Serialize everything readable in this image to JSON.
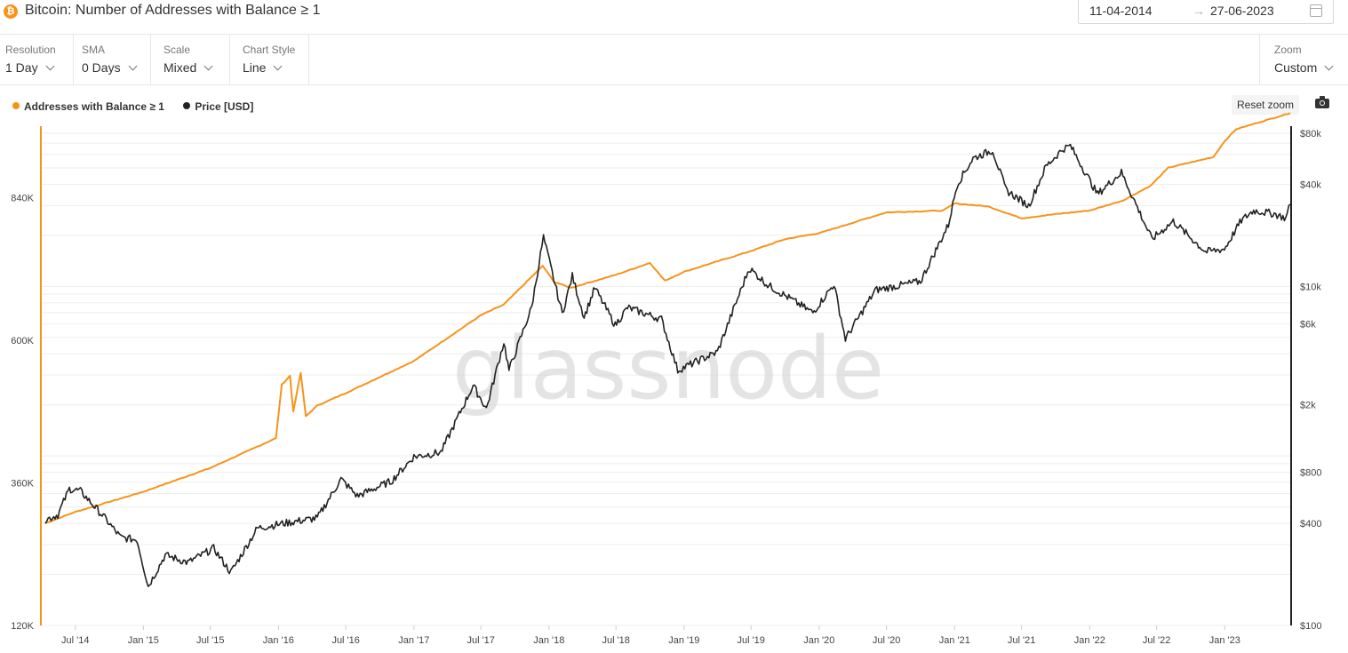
{
  "header": {
    "asset_icon": "bitcoin-icon",
    "title": "Bitcoin: Number of Addresses with Balance ≥ 1",
    "date_from": "11-04-2014",
    "date_arrow": "→",
    "date_to": "27-06-2023"
  },
  "controls": [
    {
      "label": "Resolution",
      "value": "1 Day"
    },
    {
      "label": "SMA",
      "value": "0 Days"
    },
    {
      "label": "Scale",
      "value": "Mixed"
    },
    {
      "label": "Chart Style",
      "value": "Line"
    }
  ],
  "zoom": {
    "label": "Zoom",
    "value": "Custom"
  },
  "reset_zoom_label": "Reset zoom",
  "watermark": "glassnode",
  "colors": {
    "addresses": "#f7931a",
    "price": "#222222",
    "axis_left": "#f7931a",
    "axis_right": "#222222"
  },
  "chart_data": {
    "type": "line",
    "title": "Bitcoin: Number of Addresses with Balance ≥ 1",
    "legend_position": "top-left",
    "grid": true,
    "x_ticks": [
      "Jul '14",
      "Jan '15",
      "Jul '15",
      "Jan '16",
      "Jul '16",
      "Jan '17",
      "Jul '17",
      "Jan '18",
      "Jul '18",
      "Jan '19",
      "Jul '19",
      "Jan '20",
      "Jul '20",
      "Jan '21",
      "Jul '21",
      "Jan '22",
      "Jul '22",
      "Jan '23"
    ],
    "x_range": [
      "2014-04-11",
      "2023-06-27"
    ],
    "y_left": {
      "scale": "linear",
      "range": [
        120000,
        960000
      ],
      "ticks": [
        120000,
        360000,
        600000,
        840000
      ],
      "tick_labels": [
        "120K",
        "360K",
        "600K",
        "840K"
      ]
    },
    "y_right": {
      "scale": "log",
      "range": [
        100,
        80000
      ],
      "ticks": [
        100,
        400,
        800,
        2000,
        6000,
        10000,
        40000,
        80000
      ],
      "tick_labels": [
        "$100",
        "$400",
        "$800",
        "$2k",
        "$6k",
        "$10k",
        "$40k",
        "$80k"
      ]
    },
    "series": [
      {
        "name": "Addresses with Balance ≥ 1",
        "axis": "left",
        "points": [
          [
            "2014-04-11",
            292000
          ],
          [
            "2014-07-01",
            311000
          ],
          [
            "2015-01-01",
            345000
          ],
          [
            "2015-07-01",
            385000
          ],
          [
            "2015-12-25",
            435000
          ],
          [
            "2016-01-10",
            525000
          ],
          [
            "2016-02-01",
            540000
          ],
          [
            "2016-02-10",
            480000
          ],
          [
            "2016-03-01",
            545000
          ],
          [
            "2016-03-15",
            472000
          ],
          [
            "2016-04-15",
            490000
          ],
          [
            "2016-07-01",
            511000
          ],
          [
            "2017-01-01",
            565000
          ],
          [
            "2017-07-01",
            642000
          ],
          [
            "2017-09-01",
            660000
          ],
          [
            "2017-12-15",
            725000
          ],
          [
            "2018-01-15",
            698000
          ],
          [
            "2018-03-01",
            688000
          ],
          [
            "2018-07-01",
            710000
          ],
          [
            "2018-10-01",
            730000
          ],
          [
            "2018-11-10",
            700000
          ],
          [
            "2019-01-01",
            715000
          ],
          [
            "2019-07-01",
            750000
          ],
          [
            "2019-10-01",
            770000
          ],
          [
            "2020-01-01",
            780000
          ],
          [
            "2020-07-01",
            815000
          ],
          [
            "2020-12-01",
            818000
          ],
          [
            "2021-01-01",
            830000
          ],
          [
            "2021-04-01",
            825000
          ],
          [
            "2021-07-01",
            805000
          ],
          [
            "2021-10-01",
            812000
          ],
          [
            "2022-01-01",
            818000
          ],
          [
            "2022-04-01",
            835000
          ],
          [
            "2022-06-15",
            860000
          ],
          [
            "2022-08-01",
            890000
          ],
          [
            "2022-12-01",
            908000
          ],
          [
            "2023-01-01",
            935000
          ],
          [
            "2023-02-01",
            955000
          ],
          [
            "2023-06-27",
            982000
          ]
        ]
      },
      {
        "name": "Price [USD]",
        "axis": "right",
        "points": [
          [
            "2014-04-11",
            420
          ],
          [
            "2014-05-15",
            450
          ],
          [
            "2014-06-15",
            640
          ],
          [
            "2014-07-15",
            620
          ],
          [
            "2014-09-15",
            440
          ],
          [
            "2014-11-01",
            330
          ],
          [
            "2014-12-15",
            320
          ],
          [
            "2015-01-14",
            170
          ],
          [
            "2015-03-01",
            260
          ],
          [
            "2015-05-01",
            235
          ],
          [
            "2015-07-10",
            285
          ],
          [
            "2015-08-25",
            205
          ],
          [
            "2015-11-05",
            375
          ],
          [
            "2016-01-15",
            400
          ],
          [
            "2016-04-15",
            430
          ],
          [
            "2016-06-18",
            730
          ],
          [
            "2016-08-01",
            580
          ],
          [
            "2016-11-01",
            710
          ],
          [
            "2017-01-01",
            990
          ],
          [
            "2017-03-15",
            1050
          ],
          [
            "2017-06-10",
            2600
          ],
          [
            "2017-07-16",
            1900
          ],
          [
            "2017-09-01",
            4700
          ],
          [
            "2017-09-15",
            3200
          ],
          [
            "2017-11-15",
            7500
          ],
          [
            "2017-12-17",
            19500
          ],
          [
            "2018-02-06",
            6900
          ],
          [
            "2018-03-05",
            11500
          ],
          [
            "2018-04-06",
            6600
          ],
          [
            "2018-05-05",
            9800
          ],
          [
            "2018-06-29",
            5900
          ],
          [
            "2018-08-01",
            7500
          ],
          [
            "2018-11-01",
            6400
          ],
          [
            "2018-12-15",
            3200
          ],
          [
            "2019-04-01",
            4100
          ],
          [
            "2019-06-26",
            12800
          ],
          [
            "2019-08-15",
            10200
          ],
          [
            "2019-12-15",
            7000
          ],
          [
            "2020-02-10",
            10300
          ],
          [
            "2020-03-12",
            4900
          ],
          [
            "2020-06-01",
            9500
          ],
          [
            "2020-10-01",
            10700
          ],
          [
            "2020-12-15",
            23000
          ],
          [
            "2021-01-08",
            40000
          ],
          [
            "2021-02-20",
            57000
          ],
          [
            "2021-04-14",
            63500
          ],
          [
            "2021-05-20",
            37000
          ],
          [
            "2021-07-20",
            29800
          ],
          [
            "2021-09-05",
            51000
          ],
          [
            "2021-10-20",
            64500
          ],
          [
            "2021-11-10",
            67500
          ],
          [
            "2022-01-22",
            35000
          ],
          [
            "2022-03-28",
            47000
          ],
          [
            "2022-06-18",
            19000
          ],
          [
            "2022-08-15",
            24200
          ],
          [
            "2022-11-10",
            16000
          ],
          [
            "2022-12-31",
            16600
          ],
          [
            "2023-02-15",
            24500
          ],
          [
            "2023-03-20",
            28000
          ],
          [
            "2023-05-15",
            26800
          ],
          [
            "2023-06-15",
            25200
          ],
          [
            "2023-06-27",
            30500
          ]
        ]
      }
    ]
  }
}
